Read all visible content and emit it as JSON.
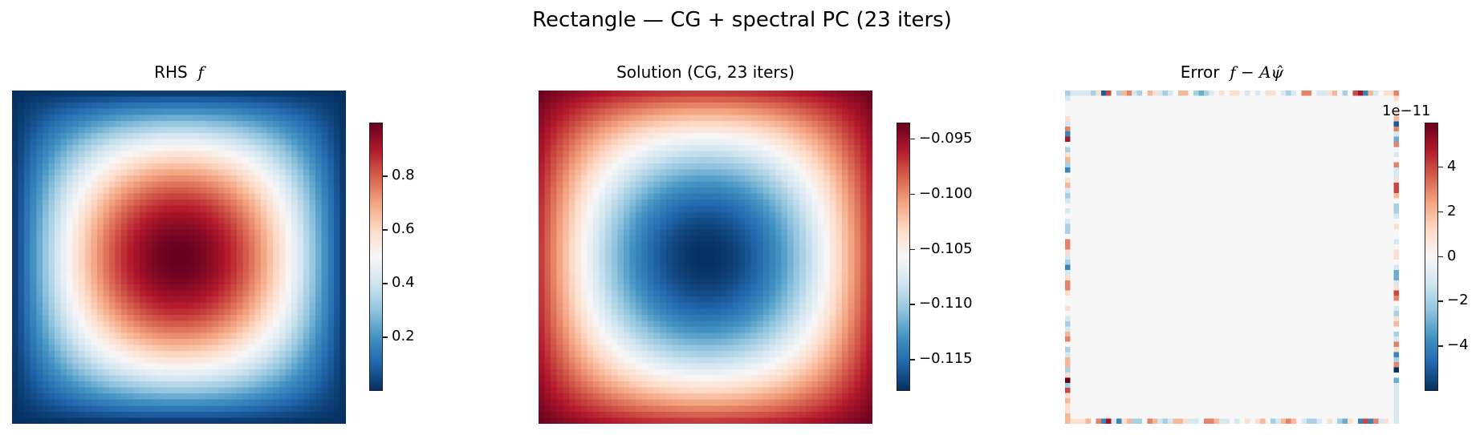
{
  "figure": {
    "suptitle": "Rectangle — CG + spectral PC (23 iters)",
    "colormap": "RdBu_r",
    "colormap_stops": [
      "#053061",
      "#2166ac",
      "#4393c3",
      "#92c5de",
      "#d1e5f0",
      "#f7f7f7",
      "#fddbc7",
      "#f4a582",
      "#d6604d",
      "#b2182b",
      "#67001f"
    ]
  },
  "panels": [
    {
      "title_text": "RHS",
      "title_math": "f",
      "colorbar": {
        "min": 0.0,
        "max": 1.0,
        "ticks": [
          "0.2",
          "0.4",
          "0.6",
          "0.8"
        ],
        "tick_values": [
          0.2,
          0.4,
          0.6,
          0.8
        ]
      }
    },
    {
      "title_text": "Solution  (CG, 23 iters)",
      "title_math": "",
      "colorbar": {
        "min": -0.1178,
        "max": -0.0935,
        "ticks": [
          "−0.095",
          "−0.100",
          "−0.105",
          "−0.110",
          "−0.115"
        ],
        "tick_values": [
          -0.095,
          -0.1,
          -0.105,
          -0.11,
          -0.115
        ]
      }
    },
    {
      "title_text": "Error",
      "title_math": "f − Aψ̂",
      "colorbar": {
        "min": -6.0,
        "max": 6.0,
        "offset_label": "1e−11",
        "ticks": [
          "4",
          "2",
          "0",
          "−2",
          "−4"
        ],
        "tick_values": [
          4,
          2,
          0,
          -2,
          -4
        ]
      }
    }
  ],
  "chart_data": [
    {
      "type": "heatmap",
      "title": "RHS f",
      "grid": [
        55,
        55
      ],
      "description": "sin(pi x) sin(pi y) pattern, max ~1 at center, ~0 at boundary",
      "value_range": [
        0.0,
        1.0
      ],
      "colorbar_ticks": [
        0.2,
        0.4,
        0.6,
        0.8
      ]
    },
    {
      "type": "heatmap",
      "title": "Solution (CG, 23 iters)",
      "grid": [
        55,
        55
      ],
      "description": "minimum ~-0.1178 at center, maximum ~-0.0935 at corners, radially symmetric bowl",
      "value_range": [
        -0.1178,
        -0.0935
      ],
      "colorbar_ticks": [
        -0.095,
        -0.1,
        -0.105,
        -0.11,
        -0.115
      ]
    },
    {
      "type": "heatmap",
      "title": "Error f - Aψ̂",
      "grid": [
        65,
        65
      ],
      "scale": "1e-11",
      "description": "interior ~0, nonzero noise only on boundary cells",
      "value_range": [
        -6.0,
        6.0
      ],
      "colorbar_ticks": [
        -4,
        -2,
        0,
        2,
        4
      ],
      "border": {
        "top": [
          -2,
          -1,
          -1,
          -1,
          -1,
          -2,
          1,
          -5,
          4,
          0,
          -2,
          2,
          3,
          -1,
          -2,
          0,
          2,
          1,
          -1,
          -2,
          -1,
          0,
          2,
          2,
          0,
          -2,
          -3,
          -2,
          -1,
          0,
          1,
          0,
          1,
          1,
          0,
          -1,
          0,
          -1,
          0,
          1,
          1,
          0,
          -1,
          -2,
          -1,
          0,
          3,
          3,
          0,
          -1,
          -1,
          1,
          2,
          0,
          -2,
          0,
          4,
          5,
          -4,
          2,
          -1,
          0,
          1,
          1,
          3
        ],
        "bottom": [
          2,
          1,
          1,
          1,
          2,
          0,
          3,
          -4,
          5,
          -1,
          -4,
          1,
          2,
          -2,
          -2,
          0,
          3,
          2,
          -1,
          -2,
          -1,
          2,
          2,
          1,
          -1,
          -1,
          0,
          3,
          3,
          2,
          -1,
          -1,
          0,
          -1,
          0,
          1,
          0,
          1,
          2,
          0,
          -2,
          -1,
          2,
          3,
          2,
          0,
          -1,
          -2,
          -2,
          -1,
          0,
          1,
          0,
          -2,
          -3,
          1,
          0,
          -4,
          4,
          -4,
          3,
          -1,
          1,
          0,
          -1
        ],
        "left": [
          -2,
          -1,
          0,
          0,
          0,
          1,
          -1,
          3,
          -4,
          5,
          0,
          -2,
          1,
          2,
          -2,
          -4,
          0,
          1,
          2,
          -1,
          -2,
          -1,
          0,
          -1,
          0,
          -1,
          -2,
          -2,
          0,
          3,
          3,
          1,
          -1,
          -2,
          -4,
          -1,
          1,
          3,
          3,
          1,
          0,
          0,
          1,
          0,
          -1,
          -2,
          -1,
          2,
          3,
          0,
          -2,
          -1,
          2,
          2,
          -2,
          1,
          6,
          -2,
          4,
          1,
          2,
          1,
          1,
          2,
          2
        ],
        "right": [
          3,
          1,
          0,
          0,
          1,
          2,
          -5,
          3,
          -1,
          -3,
          3,
          0,
          -1,
          0,
          3,
          -1,
          -1,
          1,
          4,
          4,
          2,
          0,
          -2,
          -2,
          -1,
          0,
          1,
          0,
          0,
          -1,
          0,
          1,
          1,
          0,
          -1,
          -3,
          -3,
          -1,
          1,
          4,
          3,
          0,
          -1,
          -2,
          1,
          2,
          0,
          -2,
          -1,
          3,
          1,
          -4,
          -2,
          3,
          -6,
          0,
          -3,
          -1,
          -1,
          -1,
          -1,
          -1,
          -1,
          -1,
          -2
        ]
      }
    }
  ]
}
